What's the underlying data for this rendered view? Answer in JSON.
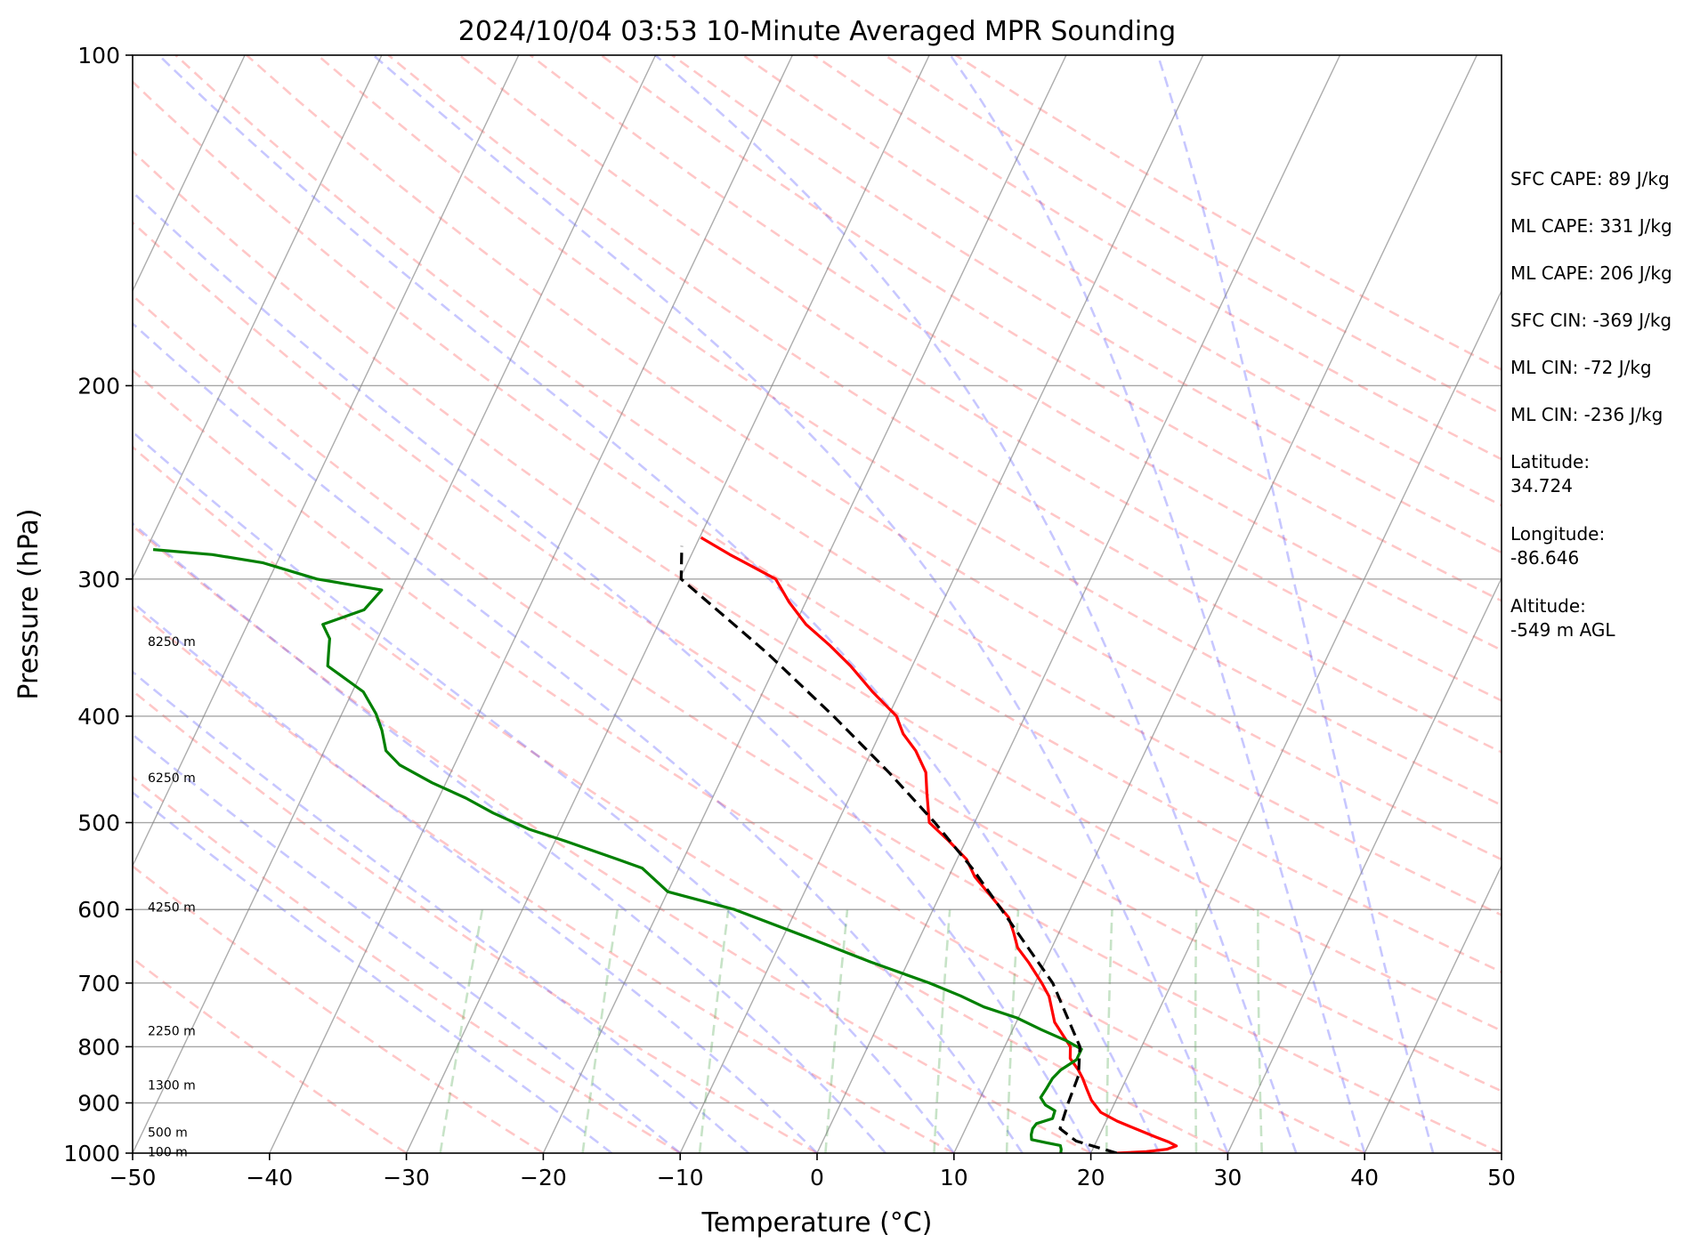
{
  "chart_data": {
    "type": "skew-t",
    "title": "2024/10/04 03:53 10-Minute Averaged MPR Sounding",
    "xlabel": "Temperature (°C)",
    "ylabel": "Pressure (hPa)",
    "xlim": [
      -50,
      50
    ],
    "ylim": [
      1000,
      100
    ],
    "y_scale": "log",
    "grid": true,
    "x_ticks": [
      "−50",
      "−40",
      "−30",
      "−20",
      "−10",
      "0",
      "10",
      "20",
      "30",
      "40",
      "50"
    ],
    "y_ticks": [
      "100",
      "200",
      "300",
      "400",
      "500",
      "600",
      "700",
      "800",
      "900",
      "1000"
    ],
    "height_labels": [
      {
        "text": "100 m",
        "p": 997
      },
      {
        "text": "500 m",
        "p": 957
      },
      {
        "text": "1300 m",
        "p": 867
      },
      {
        "text": "2250 m",
        "p": 774
      },
      {
        "text": "4250 m",
        "p": 597
      },
      {
        "text": "6250 m",
        "p": 455
      },
      {
        "text": "8250 m",
        "p": 342
      }
    ],
    "series": [
      {
        "name": "",
        "role": "temperature",
        "color": "#ff0000",
        "style": "solid",
        "points": [
          [
            21.9,
            1000
          ],
          [
            24.0,
            997
          ],
          [
            25.4,
            992
          ],
          [
            26.0,
            985
          ],
          [
            25.3,
            977
          ],
          [
            24.2,
            967
          ],
          [
            22.4,
            950
          ],
          [
            20.8,
            935
          ],
          [
            19.3,
            918
          ],
          [
            18.2,
            895
          ],
          [
            17.5,
            875
          ],
          [
            16.8,
            855
          ],
          [
            16.2,
            840
          ],
          [
            15.2,
            820
          ],
          [
            14.8,
            800
          ],
          [
            12.8,
            760
          ],
          [
            11.5,
            720
          ],
          [
            10.5,
            700
          ],
          [
            8.8,
            670
          ],
          [
            7.5,
            650
          ],
          [
            6.7,
            630
          ],
          [
            5.8,
            610
          ],
          [
            3.5,
            580
          ],
          [
            1.9,
            560
          ],
          [
            0.7,
            540
          ],
          [
            -1.2,
            520
          ],
          [
            -3.3,
            500
          ],
          [
            -4.5,
            470
          ],
          [
            -5.3,
            450
          ],
          [
            -6.8,
            430
          ],
          [
            -8.3,
            415
          ],
          [
            -9.4,
            400
          ],
          [
            -12.0,
            380
          ],
          [
            -14.5,
            360
          ],
          [
            -16.7,
            345
          ],
          [
            -19.2,
            330
          ],
          [
            -21.2,
            315
          ],
          [
            -23.0,
            300
          ],
          [
            -25.2,
            292
          ],
          [
            -27.2,
            285
          ],
          [
            -29.9,
            275
          ]
        ]
      },
      {
        "name": "",
        "role": "dewpoint",
        "color": "#008000",
        "style": "solid",
        "points": [
          [
            17.8,
            1000
          ],
          [
            17.7,
            992
          ],
          [
            17.5,
            984
          ],
          [
            16.3,
            978
          ],
          [
            15.2,
            972
          ],
          [
            15.0,
            962
          ],
          [
            14.9,
            950
          ],
          [
            15.0,
            940
          ],
          [
            16.0,
            930
          ],
          [
            15.9,
            915
          ],
          [
            15.0,
            904
          ],
          [
            14.4,
            890
          ],
          [
            14.5,
            875
          ],
          [
            14.6,
            855
          ],
          [
            14.9,
            840
          ],
          [
            15.7,
            822
          ],
          [
            15.7,
            804
          ],
          [
            14.3,
            790
          ],
          [
            12.1,
            772
          ],
          [
            9.9,
            753
          ],
          [
            7.1,
            736
          ],
          [
            5.0,
            719
          ],
          [
            2.3,
            700
          ],
          [
            -2.7,
            670
          ],
          [
            -8.2,
            636
          ],
          [
            -14.5,
            600
          ],
          [
            -20.0,
            578
          ],
          [
            -22.7,
            550
          ],
          [
            -24.8,
            540
          ],
          [
            -29.2,
            520
          ],
          [
            -32.3,
            507
          ],
          [
            -35.5,
            490
          ],
          [
            -38.0,
            475
          ],
          [
            -41.0,
            460
          ],
          [
            -44.0,
            443
          ],
          [
            -45.5,
            430
          ],
          [
            -46.5,
            412
          ],
          [
            -47.5,
            398
          ],
          [
            -49.2,
            380
          ],
          [
            -52.7,
            360
          ],
          [
            -53.1,
            350
          ],
          [
            -53.5,
            340
          ],
          [
            -54.5,
            330
          ],
          [
            -52.0,
            320
          ],
          [
            -51.4,
            307
          ],
          [
            -56.5,
            300
          ],
          [
            -61.0,
            290
          ],
          [
            -65.0,
            285
          ],
          [
            -69.5,
            282
          ]
        ]
      },
      {
        "name": "",
        "role": "parcel",
        "color": "#000000",
        "style": "dashed",
        "points": [
          [
            21.9,
            1000
          ],
          [
            18.5,
            975
          ],
          [
            16.9,
            950
          ],
          [
            16.6,
            900
          ],
          [
            16.4,
            850
          ],
          [
            15.5,
            800
          ],
          [
            11.3,
            700
          ],
          [
            5.0,
            600
          ],
          [
            1.4,
            550
          ],
          [
            -2.9,
            500
          ],
          [
            -8.0,
            450
          ],
          [
            -14.0,
            400
          ],
          [
            -21.1,
            350
          ],
          [
            -29.9,
            300
          ],
          [
            -31.0,
            280
          ]
        ]
      }
    ],
    "background_lines": {
      "isotherms": "gray solid, every 10 °C",
      "isobars": "gray solid at labelled pressures",
      "dry_adiabats": "red dashed",
      "moist_adiabats": "blue dashed",
      "mixing_ratio": "green dashed, 600-1000 hPa"
    }
  },
  "side_panel": [
    "SFC CAPE: 89 J/kg",
    "ML CAPE: 331 J/kg",
    "ML CAPE: 206 J/kg",
    "SFC CIN: -369 J/kg",
    "ML CIN: -72 J/kg",
    "ML CIN: -236 J/kg"
  ],
  "location": {
    "latitude_label": "Latitude:",
    "latitude_value": "34.724",
    "longitude_label": "Longitude:",
    "longitude_value": "-86.646",
    "altitude_label": "Altitude:",
    "altitude_value": "-549 m AGL"
  }
}
